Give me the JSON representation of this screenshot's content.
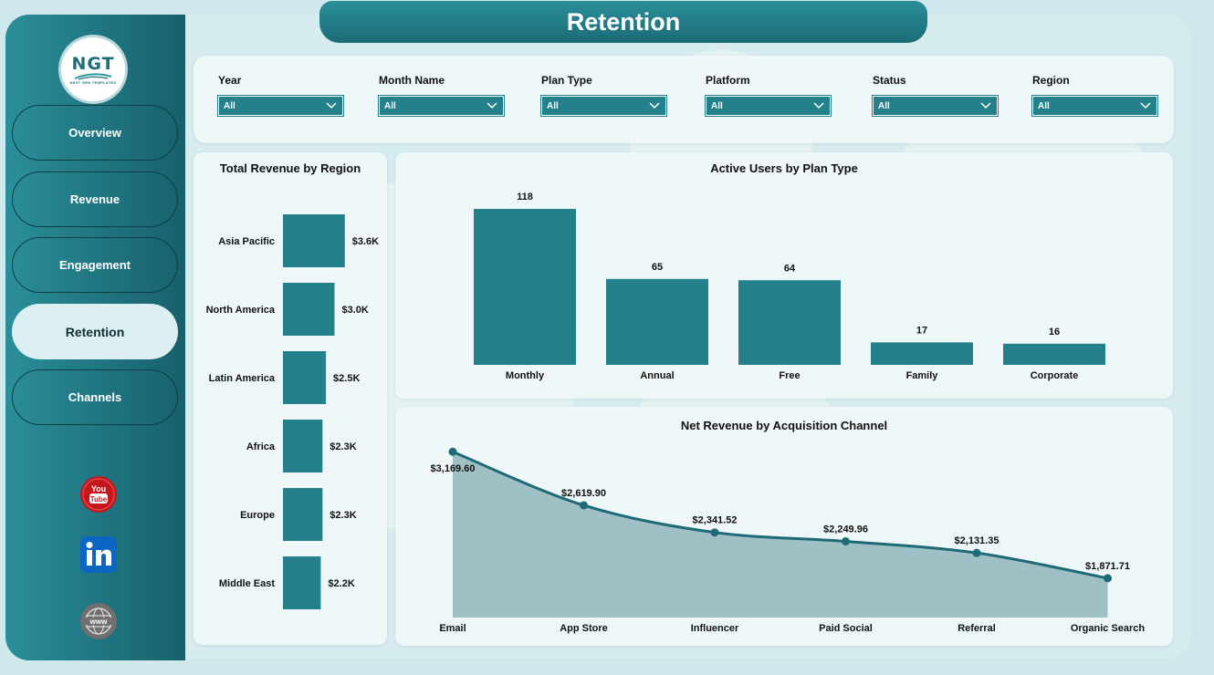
{
  "page": {
    "title": "Retention"
  },
  "logo": {
    "text": "NGT",
    "subtitle": "NEXT GEN TEMPLATES"
  },
  "nav": [
    {
      "label": "Overview",
      "active": false
    },
    {
      "label": "Revenue",
      "active": false
    },
    {
      "label": "Engagement",
      "active": false
    },
    {
      "label": "Retention",
      "active": true
    },
    {
      "label": "Channels",
      "active": false
    }
  ],
  "social": [
    {
      "name": "youtube-icon",
      "label": "You Tube",
      "color": "#c4161c"
    },
    {
      "name": "linkedin-icon",
      "label": "in",
      "color": "#0a66c2"
    },
    {
      "name": "globe-icon",
      "label": "www",
      "color": "#7a7a7a"
    }
  ],
  "filters": [
    {
      "label": "Year",
      "value": "All"
    },
    {
      "label": "Month Name",
      "value": "All"
    },
    {
      "label": "Plan Type",
      "value": "All"
    },
    {
      "label": "Platform",
      "value": "All"
    },
    {
      "label": "Status",
      "value": "All"
    },
    {
      "label": "Region",
      "value": "All"
    }
  ],
  "colors": {
    "accent": "#24808b",
    "area_fill": "#9fc0c4",
    "line": "#1f6a77"
  },
  "chart_data": [
    {
      "type": "bar",
      "orientation": "horizontal",
      "title": "Total Revenue by Region",
      "categories": [
        "Asia Pacific",
        "North America",
        "Latin America",
        "Africa",
        "Europe",
        "Middle East"
      ],
      "values": [
        3.6,
        3.0,
        2.5,
        2.3,
        2.3,
        2.2
      ],
      "value_labels": [
        "$3.6K",
        "$3.0K",
        "$2.5K",
        "$2.3K",
        "$2.3K",
        "$2.2K"
      ],
      "unit": "thousands USD"
    },
    {
      "type": "bar",
      "title": "Active Users by Plan Type",
      "categories": [
        "Monthly",
        "Annual",
        "Free",
        "Family",
        "Corporate"
      ],
      "values": [
        118,
        65,
        64,
        17,
        16
      ]
    },
    {
      "type": "area",
      "title": "Net Revenue by Acquisition Channel",
      "categories": [
        "Email",
        "App Store",
        "Influencer",
        "Paid Social",
        "Referral",
        "Organic Search"
      ],
      "values": [
        3169.6,
        2619.9,
        2341.52,
        2249.96,
        2131.35,
        1871.71
      ],
      "value_labels": [
        "$3,169.60",
        "$2,619.90",
        "$2,341.52",
        "$2,249.96",
        "$2,131.35",
        "$1,871.71"
      ]
    }
  ]
}
